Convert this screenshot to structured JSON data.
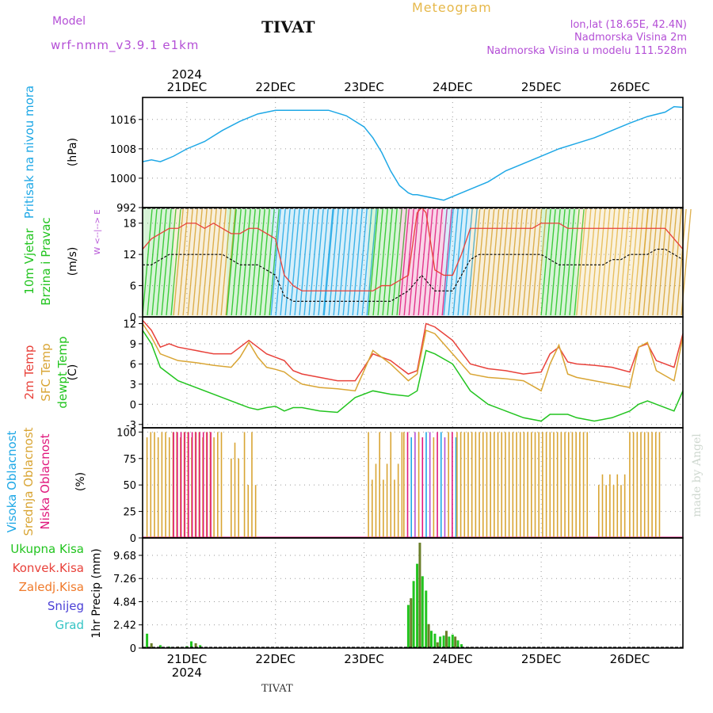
{
  "header": {
    "model_label": "Model",
    "model_name": "wrf-nmm_v3.9.1 e1km",
    "station": "TIVAT",
    "meteogram": "Meteogram",
    "lonlat": "lon,lat (18.65E, 42.4N)",
    "elevation": "Nadmorska Visina 2m",
    "model_elevation": "Nadmorska Visina u modelu 111.528m",
    "watermark": "made by Angel",
    "footer_station": "TIVAT"
  },
  "colors": {
    "pressure": "#1fa8e6",
    "temp2m": "#e8413a",
    "sfc": "#d9a534",
    "dewpt": "#22c41f",
    "precip_total": "#22c41f",
    "precip_dark": "#6b7f2a",
    "cloud_high": "#1fa8e6",
    "cloud_mid": "#d9a534",
    "cloud_low": "#e0197d",
    "purple": "#b44fd6",
    "gold": "#e6b84a"
  },
  "chart_data": [
    {
      "type": "line",
      "id": "pressure",
      "ylabel": "(hPa)",
      "side_labels": [
        "Pritisak na nivou mora"
      ],
      "yticks": [
        992,
        1000,
        1008,
        1016
      ],
      "ylim": [
        992,
        1022
      ],
      "x": [
        0,
        0.1,
        0.2,
        0.25,
        0.35,
        0.5,
        0.7,
        0.9,
        1.1,
        1.3,
        1.5,
        1.7,
        1.9,
        2.1,
        2.3,
        2.5,
        2.6,
        2.7,
        2.8,
        2.9,
        2.95,
        3.0,
        3.05,
        3.1,
        3.2,
        3.3,
        3.4,
        3.5,
        3.6,
        3.7,
        3.9,
        4.1,
        4.3,
        4.5,
        4.7,
        4.9,
        5.1,
        5.3,
        5.5,
        5.7,
        5.9,
        6.0,
        6.1
      ],
      "values": [
        1004.5,
        1005,
        1004.5,
        1005,
        1006,
        1008,
        1010,
        1013,
        1015.5,
        1017.5,
        1018.5,
        1018.5,
        1018.5,
        1018.5,
        1017,
        1014,
        1011,
        1007,
        1002,
        998,
        997,
        996,
        995.5,
        995.5,
        995,
        994.5,
        994,
        995,
        996,
        997,
        999,
        1002,
        1004,
        1006,
        1008,
        1009.5,
        1011,
        1013,
        1015,
        1016.8,
        1018,
        1019.5,
        1019.3
      ]
    },
    {
      "type": "line",
      "id": "wind",
      "ylabel": "(m/s)",
      "side_labels": [
        "10m Vjetar",
        "Brzina i Pravac"
      ],
      "yticks": [
        0,
        6,
        12,
        18
      ],
      "ylim": [
        0,
        21
      ],
      "compass": "W <--|--> E",
      "x": [
        0,
        0.1,
        0.2,
        0.3,
        0.4,
        0.5,
        0.6,
        0.7,
        0.8,
        0.9,
        1.0,
        1.1,
        1.2,
        1.3,
        1.4,
        1.5,
        1.6,
        1.7,
        1.8,
        1.9,
        2.0,
        2.1,
        2.2,
        2.3,
        2.4,
        2.5,
        2.6,
        2.7,
        2.8,
        2.9,
        3.0,
        3.1,
        3.15,
        3.2,
        3.3,
        3.4,
        3.5,
        3.6,
        3.7,
        3.8,
        3.9,
        4.0,
        4.1,
        4.2,
        4.3,
        4.4,
        4.5,
        4.6,
        4.7,
        4.8,
        4.9,
        5.0,
        5.1,
        5.2,
        5.3,
        5.4,
        5.5,
        5.6,
        5.7,
        5.8,
        5.9,
        6.0,
        6.1
      ],
      "gust": [
        13,
        15,
        16,
        17,
        17,
        18,
        18,
        17,
        18,
        17,
        16,
        16,
        17,
        17,
        16,
        15,
        8,
        6,
        5,
        5,
        5,
        5,
        5,
        5,
        5,
        5,
        5,
        6,
        6,
        7,
        8,
        20,
        21,
        20,
        9,
        8,
        8,
        12,
        17,
        17,
        17,
        17,
        17,
        17,
        17,
        17,
        18,
        18,
        18,
        17,
        17,
        17,
        17,
        17,
        17,
        17,
        17,
        17,
        17,
        17,
        17,
        15,
        13
      ],
      "speed": [
        10,
        10,
        11,
        12,
        12,
        12,
        12,
        12,
        12,
        12,
        11,
        10,
        10,
        10,
        9,
        8,
        4,
        3,
        3,
        3,
        3,
        3,
        3,
        3,
        3,
        3,
        3,
        3,
        3,
        4,
        5,
        7,
        8,
        7,
        5,
        5,
        5,
        8,
        11,
        12,
        12,
        12,
        12,
        12,
        12,
        12,
        12,
        11,
        10,
        10,
        10,
        10,
        10,
        10,
        11,
        11,
        12,
        12,
        12,
        13,
        13,
        12,
        11
      ],
      "shading": [
        {
          "from": 0,
          "to": 0.35,
          "color": "#22c41f"
        },
        {
          "from": 0.35,
          "to": 0.95,
          "color": "#d9a534"
        },
        {
          "from": 0.95,
          "to": 1.45,
          "color": "#22c41f"
        },
        {
          "from": 1.45,
          "to": 2.05,
          "color": "#1fa8e6"
        },
        {
          "from": 2.05,
          "to": 2.55,
          "color": "#1fa8e6"
        },
        {
          "from": 2.55,
          "to": 2.9,
          "color": "#22c41f"
        },
        {
          "from": 2.9,
          "to": 3.4,
          "color": "#e0197d"
        },
        {
          "from": 3.4,
          "to": 3.7,
          "color": "#1fa8e6"
        },
        {
          "from": 3.7,
          "to": 4.5,
          "color": "#d9a534"
        },
        {
          "from": 4.5,
          "to": 4.9,
          "color": "#22c41f"
        },
        {
          "from": 4.9,
          "to": 5.6,
          "color": "#e6b84a"
        },
        {
          "from": 5.6,
          "to": 6.1,
          "color": "#d9a534"
        }
      ]
    },
    {
      "type": "line",
      "id": "temperature",
      "ylabel": "(C)",
      "side_labels": [
        "2m Temp",
        "SFC Temp",
        "dewpt Temp"
      ],
      "yticks": [
        -3,
        0,
        3,
        6,
        9,
        12
      ],
      "ylim": [
        -3.5,
        13
      ],
      "x": [
        0,
        0.1,
        0.2,
        0.3,
        0.4,
        0.6,
        0.8,
        1.0,
        1.1,
        1.2,
        1.3,
        1.4,
        1.5,
        1.6,
        1.7,
        1.8,
        2.0,
        2.2,
        2.4,
        2.6,
        2.8,
        3.0,
        3.1,
        3.2,
        3.3,
        3.5,
        3.7,
        3.9,
        4.1,
        4.3,
        4.5,
        4.6,
        4.7,
        4.8,
        4.9,
        5.1,
        5.3,
        5.5,
        5.6,
        5.7,
        5.8,
        6.0,
        6.1
      ],
      "series": [
        {
          "key": "temp2m",
          "values": [
            12.5,
            11,
            8.5,
            9,
            8.5,
            8,
            7.5,
            7.5,
            8.5,
            9.5,
            8.5,
            7.5,
            7,
            6.5,
            5,
            4.5,
            4,
            3.5,
            3.5,
            7.5,
            6.5,
            4.5,
            5,
            12,
            11.5,
            9.5,
            6,
            5.3,
            5,
            4.5,
            4.8,
            7.5,
            8.5,
            6.3,
            6,
            5.8,
            5.5,
            4.8,
            8.5,
            9,
            6.5,
            5.5,
            10.5
          ]
        },
        {
          "key": "sfc",
          "values": [
            12,
            10,
            7.5,
            7,
            6.5,
            6.2,
            5.8,
            5.5,
            7,
            9.2,
            7,
            5.5,
            5.2,
            4.8,
            3.8,
            3,
            2.5,
            2.3,
            2,
            8,
            6,
            3.5,
            4.5,
            11,
            10.5,
            7.5,
            4.5,
            4,
            3.8,
            3.5,
            2,
            6,
            8.8,
            4.5,
            4,
            3.5,
            3,
            2.5,
            8.5,
            9.2,
            5,
            3.5,
            10
          ]
        },
        {
          "key": "dewpt",
          "values": [
            11,
            9,
            5.5,
            4.5,
            3.5,
            2.5,
            1.5,
            0.5,
            0,
            -0.5,
            -0.8,
            -0.5,
            -0.3,
            -1,
            -0.5,
            -0.5,
            -1,
            -1.2,
            1,
            2,
            1.5,
            1.2,
            2,
            8,
            7.5,
            6,
            2,
            0,
            -1,
            -2,
            -2.5,
            -1.5,
            -1.5,
            -1.5,
            -2,
            -2.5,
            -2,
            -1,
            0,
            0.5,
            0,
            -1,
            2
          ]
        }
      ]
    },
    {
      "type": "bar",
      "id": "clouds",
      "ylabel": "(%)",
      "side_labels": [
        "Visoka Oblacnost",
        "Srednja Oblacnost",
        "Niska Oblacnost"
      ],
      "yticks": [
        0,
        25,
        50,
        75,
        100
      ],
      "ylim": [
        0,
        104
      ],
      "runs": [
        {
          "from": 0.05,
          "to": 0.9,
          "values": [
            95,
            100,
            100
          ],
          "series": "mid"
        },
        {
          "from": 0.35,
          "to": 0.8,
          "values": [
            100
          ],
          "series": "low"
        },
        {
          "from": 1.0,
          "to": 1.1,
          "values": [
            75,
            90
          ],
          "series": "mid"
        },
        {
          "from": 1.15,
          "to": 1.3,
          "values": [
            100,
            50
          ],
          "series": "mid"
        },
        {
          "from": 2.55,
          "to": 2.95,
          "values": [
            100,
            55,
            70
          ],
          "series": "mid"
        },
        {
          "from": 2.95,
          "to": 3.55,
          "values": [
            100,
            100,
            95
          ],
          "series": "mixed"
        },
        {
          "from": 3.55,
          "to": 5.05,
          "values": [
            100
          ],
          "series": "mid"
        },
        {
          "from": 5.15,
          "to": 5.45,
          "values": [
            50,
            60
          ],
          "series": "mid"
        },
        {
          "from": 5.5,
          "to": 5.85,
          "values": [
            100
          ],
          "series": "mid"
        }
      ]
    },
    {
      "type": "bar",
      "id": "precip",
      "ylabel": "1hr Precip (mm)",
      "side_labels": [
        "Ukupna Kisa",
        "Konvek.Kisa",
        "Zaledj.Kisa",
        "Snijeg",
        "Grad"
      ],
      "yticks": [
        0,
        2.42,
        4.84,
        7.26,
        9.68
      ],
      "ylim": [
        0,
        11.5
      ],
      "x": [
        0.05,
        0.1,
        0.2,
        0.3,
        0.4,
        0.5,
        0.55,
        0.6,
        0.65,
        3.0,
        3.03,
        3.06,
        3.1,
        3.13,
        3.16,
        3.2,
        3.23,
        3.26,
        3.3,
        3.33,
        3.36,
        3.4,
        3.43,
        3.46,
        3.5,
        3.53,
        3.56,
        3.6,
        3.7
      ],
      "values": [
        1.5,
        0.5,
        0.3,
        0.15,
        0.15,
        0.2,
        0.7,
        0.5,
        0.3,
        4.5,
        5.2,
        7,
        8.8,
        11,
        7.5,
        6,
        2.5,
        1.8,
        1.5,
        0.6,
        1.2,
        1.3,
        1.8,
        1.2,
        1.4,
        1.2,
        0.8,
        0.4,
        0.1
      ]
    }
  ],
  "x_axis": {
    "labels": [
      "21DEC",
      "22DEC",
      "23DEC",
      "24DEC",
      "25DEC",
      "26DEC"
    ],
    "year": "2024",
    "positions": [
      0.5,
      1.5,
      2.5,
      3.5,
      4.5,
      5.5
    ],
    "range": [
      0,
      6.1
    ]
  }
}
